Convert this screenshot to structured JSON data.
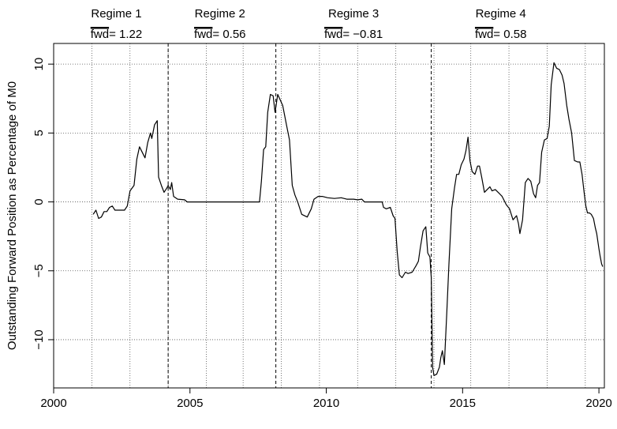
{
  "chart_data": {
    "type": "line",
    "title": "",
    "xlabel": "",
    "ylabel": "Outstanding Forward Position as Percentage of M0",
    "xlim": [
      2000,
      2020.2
    ],
    "ylim": [
      -13.5,
      11.5
    ],
    "x_ticks": [
      2000,
      2005,
      2010,
      2015,
      2020
    ],
    "x_tick_labels": [
      "2000",
      "2005",
      "2010",
      "2015",
      "2020"
    ],
    "y_ticks": [
      -10,
      -5,
      0,
      5,
      10
    ],
    "y_tick_labels": [
      "−10",
      "−5",
      "0",
      "5",
      "10"
    ],
    "grid": true,
    "grid_x": [
      2000,
      2001.4,
      2002.8,
      2004.2,
      2005.6,
      2006.95,
      2008.35,
      2009.75,
      2011.15,
      2012.55,
      2013.95,
      2015.3,
      2016.7,
      2018.1,
      2019.5
    ],
    "grid_y": [
      -10,
      -5,
      0,
      5,
      10
    ],
    "regime_breaks": [
      2004.2,
      2008.15,
      2013.85
    ],
    "regimes": [
      {
        "label": "Regime 1",
        "stat_name": "fwd",
        "stat_value": "= 1.22",
        "x": 2002.3
      },
      {
        "label": "Regime 2",
        "stat_name": "fwd",
        "stat_value": "= 0.56",
        "x": 2006.1
      },
      {
        "label": "Regime 3",
        "stat_name": "fwd",
        "stat_value": "= −0.81",
        "x": 2011.0
      },
      {
        "label": "Regime 4",
        "stat_name": "fwd",
        "stat_value": "= 0.58",
        "x": 2016.4
      }
    ],
    "series": [
      {
        "color": "#000000",
        "points": [
          [
            2001.45,
            -0.9
          ],
          [
            2001.55,
            -0.6
          ],
          [
            2001.65,
            -1.2
          ],
          [
            2001.75,
            -1.1
          ],
          [
            2001.85,
            -0.7
          ],
          [
            2001.95,
            -0.7
          ],
          [
            2002.05,
            -0.4
          ],
          [
            2002.15,
            -0.3
          ],
          [
            2002.25,
            -0.6
          ],
          [
            2002.45,
            -0.6
          ],
          [
            2002.6,
            -0.6
          ],
          [
            2002.7,
            -0.3
          ],
          [
            2002.8,
            0.8
          ],
          [
            2002.95,
            1.2
          ],
          [
            2003.05,
            3.1
          ],
          [
            2003.15,
            4.0
          ],
          [
            2003.35,
            3.2
          ],
          [
            2003.45,
            4.3
          ],
          [
            2003.55,
            5.0
          ],
          [
            2003.6,
            4.6
          ],
          [
            2003.7,
            5.6
          ],
          [
            2003.8,
            5.9
          ],
          [
            2003.85,
            1.8
          ],
          [
            2003.95,
            1.2
          ],
          [
            2004.05,
            0.7
          ],
          [
            2004.15,
            1.0
          ],
          [
            2004.2,
            1.2
          ],
          [
            2004.28,
            0.9
          ],
          [
            2004.33,
            1.4
          ],
          [
            2004.4,
            0.4
          ],
          [
            2004.55,
            0.2
          ],
          [
            2004.8,
            0.15
          ],
          [
            2004.9,
            0.0
          ],
          [
            2007.55,
            0.0
          ],
          [
            2007.62,
            1.5
          ],
          [
            2007.7,
            3.8
          ],
          [
            2007.78,
            4.0
          ],
          [
            2007.85,
            6.5
          ],
          [
            2007.95,
            7.8
          ],
          [
            2008.05,
            7.7
          ],
          [
            2008.12,
            6.5
          ],
          [
            2008.22,
            7.8
          ],
          [
            2008.4,
            7.0
          ],
          [
            2008.55,
            5.5
          ],
          [
            2008.65,
            4.5
          ],
          [
            2008.75,
            1.2
          ],
          [
            2008.85,
            0.5
          ],
          [
            2008.95,
            0.0
          ],
          [
            2009.1,
            -0.9
          ],
          [
            2009.3,
            -1.1
          ],
          [
            2009.45,
            -0.5
          ],
          [
            2009.55,
            0.2
          ],
          [
            2009.7,
            0.4
          ],
          [
            2009.85,
            0.4
          ],
          [
            2010.05,
            0.3
          ],
          [
            2010.3,
            0.25
          ],
          [
            2010.55,
            0.3
          ],
          [
            2010.75,
            0.2
          ],
          [
            2011.0,
            0.2
          ],
          [
            2011.15,
            0.15
          ],
          [
            2011.3,
            0.2
          ],
          [
            2011.4,
            0.0
          ],
          [
            2012.05,
            0.0
          ],
          [
            2012.1,
            -0.4
          ],
          [
            2012.2,
            -0.5
          ],
          [
            2012.35,
            -0.4
          ],
          [
            2012.45,
            -1.0
          ],
          [
            2012.52,
            -1.2
          ],
          [
            2012.6,
            -3.6
          ],
          [
            2012.68,
            -5.3
          ],
          [
            2012.78,
            -5.5
          ],
          [
            2012.9,
            -5.1
          ],
          [
            2013.0,
            -5.2
          ],
          [
            2013.15,
            -5.1
          ],
          [
            2013.3,
            -4.6
          ],
          [
            2013.38,
            -4.3
          ],
          [
            2013.45,
            -3.3
          ],
          [
            2013.55,
            -2.1
          ],
          [
            2013.65,
            -1.8
          ],
          [
            2013.72,
            -3.7
          ],
          [
            2013.8,
            -4.0
          ],
          [
            2013.85,
            -5.5
          ],
          [
            2013.9,
            -12.0
          ],
          [
            2013.95,
            -12.6
          ],
          [
            2014.05,
            -12.5
          ],
          [
            2014.15,
            -12.0
          ],
          [
            2014.2,
            -11.3
          ],
          [
            2014.26,
            -10.8
          ],
          [
            2014.33,
            -11.8
          ],
          [
            2014.42,
            -8.0
          ],
          [
            2014.5,
            -4.5
          ],
          [
            2014.6,
            -0.5
          ],
          [
            2014.7,
            1.0
          ],
          [
            2014.78,
            2.0
          ],
          [
            2014.86,
            2.0
          ],
          [
            2014.95,
            2.7
          ],
          [
            2015.05,
            3.1
          ],
          [
            2015.12,
            3.7
          ],
          [
            2015.2,
            4.7
          ],
          [
            2015.27,
            3.0
          ],
          [
            2015.35,
            2.2
          ],
          [
            2015.45,
            2.0
          ],
          [
            2015.55,
            2.6
          ],
          [
            2015.62,
            2.6
          ],
          [
            2015.7,
            1.8
          ],
          [
            2015.8,
            0.7
          ],
          [
            2015.9,
            0.9
          ],
          [
            2016.0,
            1.1
          ],
          [
            2016.08,
            0.8
          ],
          [
            2016.2,
            0.9
          ],
          [
            2016.35,
            0.6
          ],
          [
            2016.45,
            0.4
          ],
          [
            2016.6,
            -0.2
          ],
          [
            2016.72,
            -0.5
          ],
          [
            2016.85,
            -1.3
          ],
          [
            2016.98,
            -1.0
          ],
          [
            2017.05,
            -1.6
          ],
          [
            2017.1,
            -2.3
          ],
          [
            2017.2,
            -1.3
          ],
          [
            2017.3,
            1.4
          ],
          [
            2017.4,
            1.7
          ],
          [
            2017.5,
            1.5
          ],
          [
            2017.6,
            0.6
          ],
          [
            2017.68,
            0.3
          ],
          [
            2017.75,
            1.2
          ],
          [
            2017.82,
            1.4
          ],
          [
            2017.9,
            3.6
          ],
          [
            2018.0,
            4.5
          ],
          [
            2018.1,
            4.6
          ],
          [
            2018.18,
            5.5
          ],
          [
            2018.25,
            8.5
          ],
          [
            2018.35,
            10.1
          ],
          [
            2018.45,
            9.7
          ],
          [
            2018.55,
            9.6
          ],
          [
            2018.65,
            9.2
          ],
          [
            2018.72,
            8.6
          ],
          [
            2018.82,
            7.0
          ],
          [
            2018.9,
            6.0
          ],
          [
            2019.0,
            5.0
          ],
          [
            2019.1,
            3.0
          ],
          [
            2019.22,
            2.9
          ],
          [
            2019.3,
            2.9
          ],
          [
            2019.38,
            2.0
          ],
          [
            2019.45,
            0.8
          ],
          [
            2019.52,
            -0.3
          ],
          [
            2019.58,
            -0.8
          ],
          [
            2019.65,
            -0.8
          ],
          [
            2019.72,
            -0.9
          ],
          [
            2019.8,
            -1.2
          ],
          [
            2019.87,
            -1.9
          ],
          [
            2019.92,
            -2.3
          ],
          [
            2020.0,
            -3.4
          ],
          [
            2020.05,
            -4.0
          ],
          [
            2020.1,
            -4.5
          ],
          [
            2020.14,
            -4.7
          ]
        ]
      }
    ]
  }
}
